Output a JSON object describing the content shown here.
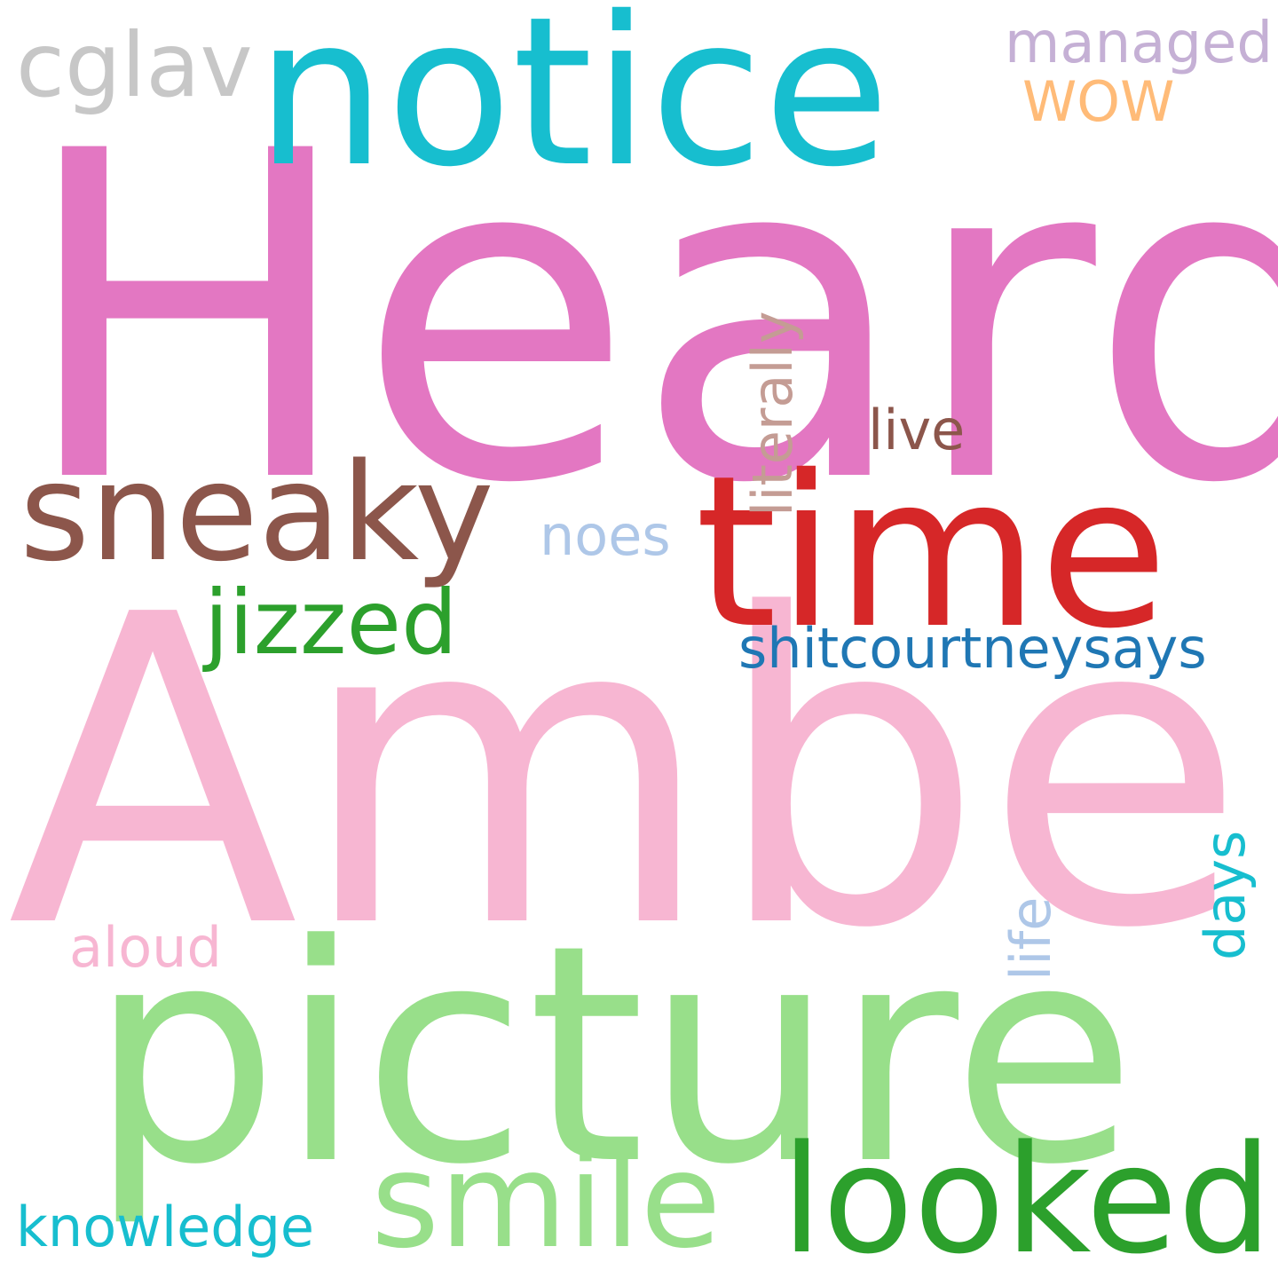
{
  "words": {
    "heard": {
      "text": "Heard",
      "color": "#e377c2"
    },
    "amber": {
      "text": "Amber",
      "color": "#f7b6d2"
    },
    "picture": {
      "text": "picture",
      "color": "#98df8a"
    },
    "notice": {
      "text": "notice",
      "color": "#17becf"
    },
    "time": {
      "text": "time",
      "color": "#d62728"
    },
    "sneaky": {
      "text": "sneaky",
      "color": "#8c564b"
    },
    "looked": {
      "text": "looked",
      "color": "#2ca02c"
    },
    "smile": {
      "text": "smile",
      "color": "#98df8a"
    },
    "jizzed": {
      "text": "jizzed",
      "color": "#2ca02c"
    },
    "shitcourtneysays": {
      "text": "shitcourtneysays",
      "color": "#1f77b4"
    },
    "cglav": {
      "text": "cglav",
      "color": "#c7c7c7"
    },
    "managed": {
      "text": "managed",
      "color": "#c5b0d5"
    },
    "wow": {
      "text": "WOW",
      "color": "#ffbb78"
    },
    "literally": {
      "text": "literally",
      "color": "#c49c94"
    },
    "live": {
      "text": "live",
      "color": "#8c564b"
    },
    "noes": {
      "text": "noes",
      "color": "#aec7e8"
    },
    "knowledge": {
      "text": "knowledge",
      "color": "#17becf"
    },
    "aloud": {
      "text": "aloud",
      "color": "#f7b6d2"
    },
    "life": {
      "text": "life",
      "color": "#aec7e8"
    },
    "days": {
      "text": "days",
      "color": "#17becf"
    }
  }
}
